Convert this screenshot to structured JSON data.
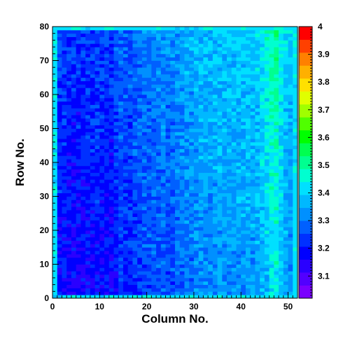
{
  "chart_data": {
    "type": "heatmap",
    "title": "",
    "xlabel": "Column No.",
    "ylabel": "Row No.",
    "xlim": [
      0,
      52
    ],
    "ylim": [
      0,
      80
    ],
    "x_ticks": [
      0,
      10,
      20,
      30,
      40,
      50
    ],
    "y_ticks": [
      0,
      10,
      20,
      30,
      40,
      50,
      60,
      70,
      80
    ],
    "x_tick_labels": [
      "0",
      "10",
      "20",
      "30",
      "40",
      "50"
    ],
    "y_tick_labels": [
      "0",
      "10",
      "20",
      "30",
      "40",
      "50",
      "60",
      "70",
      "80"
    ],
    "n_columns": 52,
    "n_rows": 80,
    "z_range": [
      3.02,
      4.0
    ],
    "colorbar": {
      "ticks": [
        3.1,
        3.2,
        3.3,
        3.4,
        3.5,
        3.6,
        3.7,
        3.8,
        3.9,
        4.0
      ],
      "tick_labels": [
        "3.1",
        "3.2",
        "3.3",
        "3.4",
        "3.5",
        "3.6",
        "3.7",
        "3.8",
        "3.9",
        "4"
      ],
      "palette": [
        "#7a00ff",
        "#5200ff",
        "#2a00ff",
        "#0000ff",
        "#0030ff",
        "#0060ff",
        "#0090ff",
        "#00b8ff",
        "#00e0ff",
        "#00ffd0",
        "#00ff90",
        "#00ff50",
        "#00ff00",
        "#50ff00",
        "#a0ff00",
        "#e0ff00",
        "#ffe000",
        "#ffb000",
        "#ff8000",
        "#ff4000",
        "#ff0000"
      ]
    },
    "column_profile": {
      "columns_from": 0,
      "values": [
        3.19,
        3.18,
        3.17,
        3.16,
        3.16,
        3.16,
        3.16,
        3.17,
        3.17,
        3.18,
        3.17,
        3.17,
        3.16,
        3.2,
        3.22,
        3.21,
        3.2,
        3.22,
        3.23,
        3.24,
        3.24,
        3.25,
        3.25,
        3.26,
        3.25,
        3.25,
        3.27,
        3.28,
        3.29,
        3.29,
        3.3,
        3.31,
        3.31,
        3.31,
        3.31,
        3.32,
        3.32,
        3.32,
        3.32,
        3.32,
        3.33,
        3.33,
        3.33,
        3.34,
        3.36,
        3.38,
        3.42,
        3.43,
        3.38,
        3.34,
        3.32,
        3.31
      ]
    },
    "row_gradient_per_row": 0.0009,
    "edge_value": 3.42,
    "noise_amplitude": 0.05
  }
}
